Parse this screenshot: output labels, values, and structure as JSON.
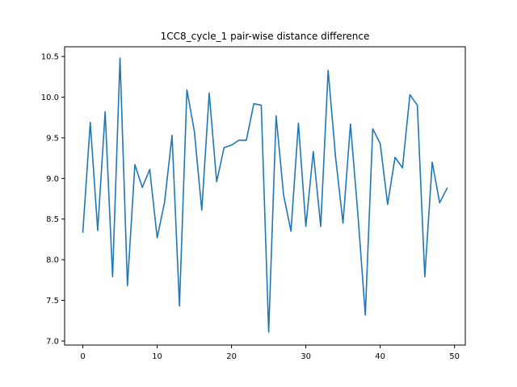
{
  "chart_data": {
    "type": "line",
    "title": "1CC8_cycle_1 pair-wise distance difference",
    "xlabel": "",
    "ylabel": "",
    "xlim": [
      -2.45,
      51.45
    ],
    "ylim": [
      6.95,
      10.62
    ],
    "xticks": [
      0,
      10,
      20,
      30,
      40,
      50
    ],
    "yticks": [
      7.0,
      7.5,
      8.0,
      8.5,
      9.0,
      9.5,
      10.0,
      10.5
    ],
    "ytick_labels": [
      "7.0",
      "7.5",
      "8.0",
      "8.5",
      "9.0",
      "9.5",
      "10.0",
      "10.5"
    ],
    "grid": false,
    "line_color": "#1f77b4",
    "series": [
      {
        "x": [
          0,
          1,
          2,
          3,
          4,
          5,
          6,
          7,
          8,
          9,
          10,
          11,
          12,
          13,
          14,
          15,
          16,
          17,
          18,
          19,
          20,
          21,
          22,
          23,
          24,
          25,
          26,
          27,
          28,
          29,
          30,
          31,
          32,
          33,
          34,
          35,
          36,
          37,
          38,
          39,
          40,
          41,
          42,
          43,
          44,
          45,
          46,
          47,
          48,
          49
        ],
        "values": [
          8.34,
          9.69,
          8.36,
          9.82,
          7.79,
          10.48,
          7.68,
          9.17,
          8.89,
          9.11,
          8.27,
          8.71,
          9.53,
          7.43,
          10.09,
          9.58,
          8.61,
          10.05,
          8.96,
          9.38,
          9.41,
          9.47,
          9.47,
          9.92,
          9.9,
          7.11,
          9.77,
          8.8,
          8.35,
          9.68,
          8.41,
          9.33,
          8.41,
          10.33,
          9.26,
          8.45,
          9.67,
          8.56,
          7.32,
          9.61,
          9.43,
          8.68,
          9.26,
          9.13,
          10.03,
          9.9,
          7.79,
          9.2,
          8.7,
          8.88
        ]
      }
    ]
  }
}
